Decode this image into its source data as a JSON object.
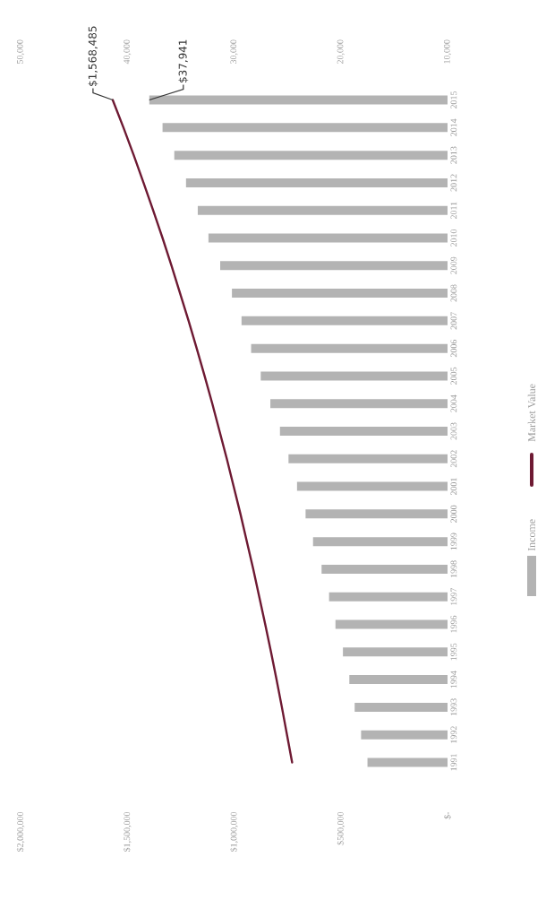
{
  "chart_data": {
    "type": "bar",
    "orientation": "horizontal",
    "legend": "right",
    "categories": [
      "2015",
      "2014",
      "2013",
      "2012",
      "2011",
      "2010",
      "2009",
      "2008",
      "2007",
      "2006",
      "2005",
      "2004",
      "2003",
      "2002",
      "2001",
      "2000",
      "1999",
      "1998",
      "1997",
      "1996",
      "1995",
      "1994",
      "1993",
      "1992",
      "1991"
    ],
    "series": [
      {
        "name": "Income",
        "axis": "x2",
        "color": "#b3b3b3",
        "values": [
          37941,
          36700,
          35600,
          34500,
          33400,
          32400,
          31300,
          30200,
          29300,
          28400,
          27500,
          26600,
          25700,
          24900,
          24100,
          23300,
          22600,
          21800,
          21100,
          20500,
          19800,
          19200,
          18700,
          18100,
          17500
        ],
        "value_labels": [
          "$37,941",
          null,
          null,
          null,
          null,
          null,
          null,
          null,
          null,
          null,
          null,
          null,
          null,
          null,
          null,
          null,
          null,
          null,
          null,
          null,
          null,
          null,
          null,
          null,
          null
        ]
      },
      {
        "name": "Market Value",
        "type": "line",
        "color": "#6e1a33",
        "values": [
          1568485,
          1518000,
          1470000,
          1424000,
          1379000,
          1335000,
          1293000,
          1253000,
          1213000,
          1175000,
          1138000,
          1102000,
          1068000,
          1034000,
          1002000,
          970000,
          940000,
          910000,
          882000,
          854000,
          827000,
          801000,
          776000,
          752000,
          728000
        ],
        "value_labels": [
          "$1,568,485",
          null,
          null,
          null,
          null,
          null,
          null,
          null,
          null,
          null,
          null,
          null,
          null,
          null,
          null,
          null,
          null,
          null,
          null,
          null,
          null,
          null,
          null,
          null,
          null
        ]
      }
    ],
    "xlim": [
      2000000,
      0
    ],
    "xticks": [
      {
        "value": 0,
        "label": "$-"
      },
      {
        "value": 500000,
        "label": "$500,000"
      },
      {
        "value": 1000000,
        "label": "$1,000,000"
      },
      {
        "value": 1500000,
        "label": "$1,500,000"
      },
      {
        "value": 2000000,
        "label": "$2,000,000"
      }
    ],
    "x2lim": [
      50000,
      10000
    ],
    "x2ticks": [
      {
        "value": 10000,
        "label": "10,000"
      },
      {
        "value": 20000,
        "label": "20,000"
      },
      {
        "value": 30000,
        "label": "30,000"
      },
      {
        "value": 40000,
        "label": "40,000"
      },
      {
        "value": 50000,
        "label": "50,000"
      }
    ]
  }
}
